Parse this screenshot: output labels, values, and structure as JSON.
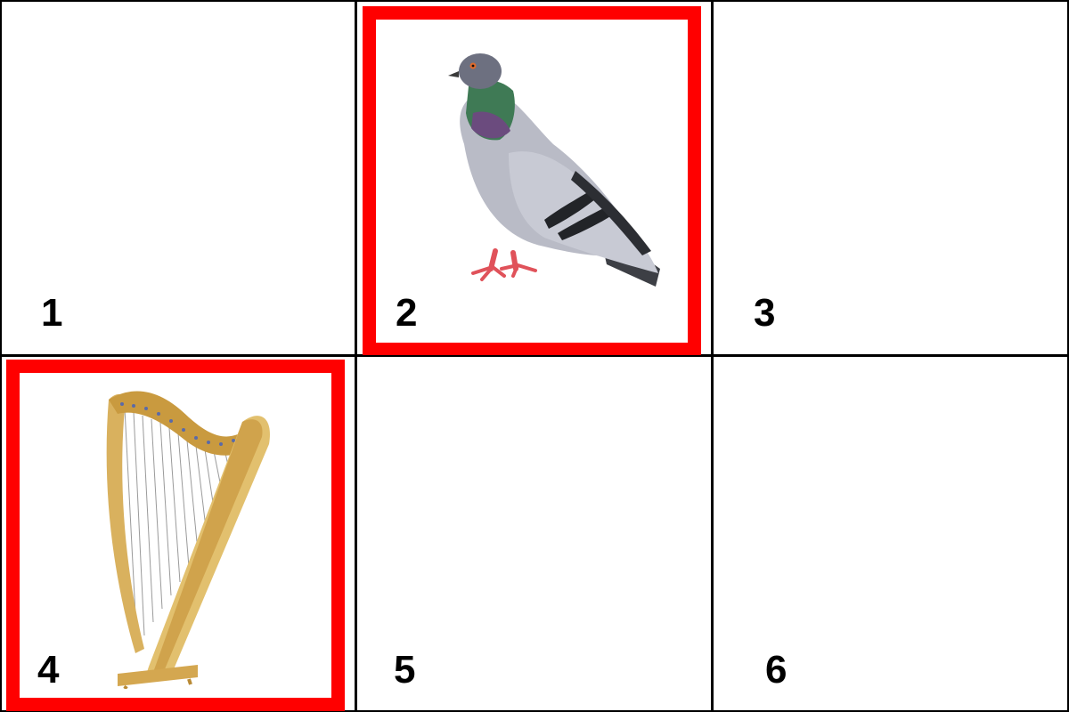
{
  "colors": {
    "grid_line": "#000000",
    "selection_border": "#ff0000",
    "background": "#ffffff"
  },
  "cells": [
    {
      "number": "1",
      "image": "",
      "selected": false
    },
    {
      "number": "2",
      "image": "pigeon",
      "selected": true
    },
    {
      "number": "3",
      "image": "",
      "selected": false
    },
    {
      "number": "4",
      "image": "harp",
      "selected": true
    },
    {
      "number": "5",
      "image": "",
      "selected": false
    },
    {
      "number": "6",
      "image": "",
      "selected": false
    }
  ]
}
